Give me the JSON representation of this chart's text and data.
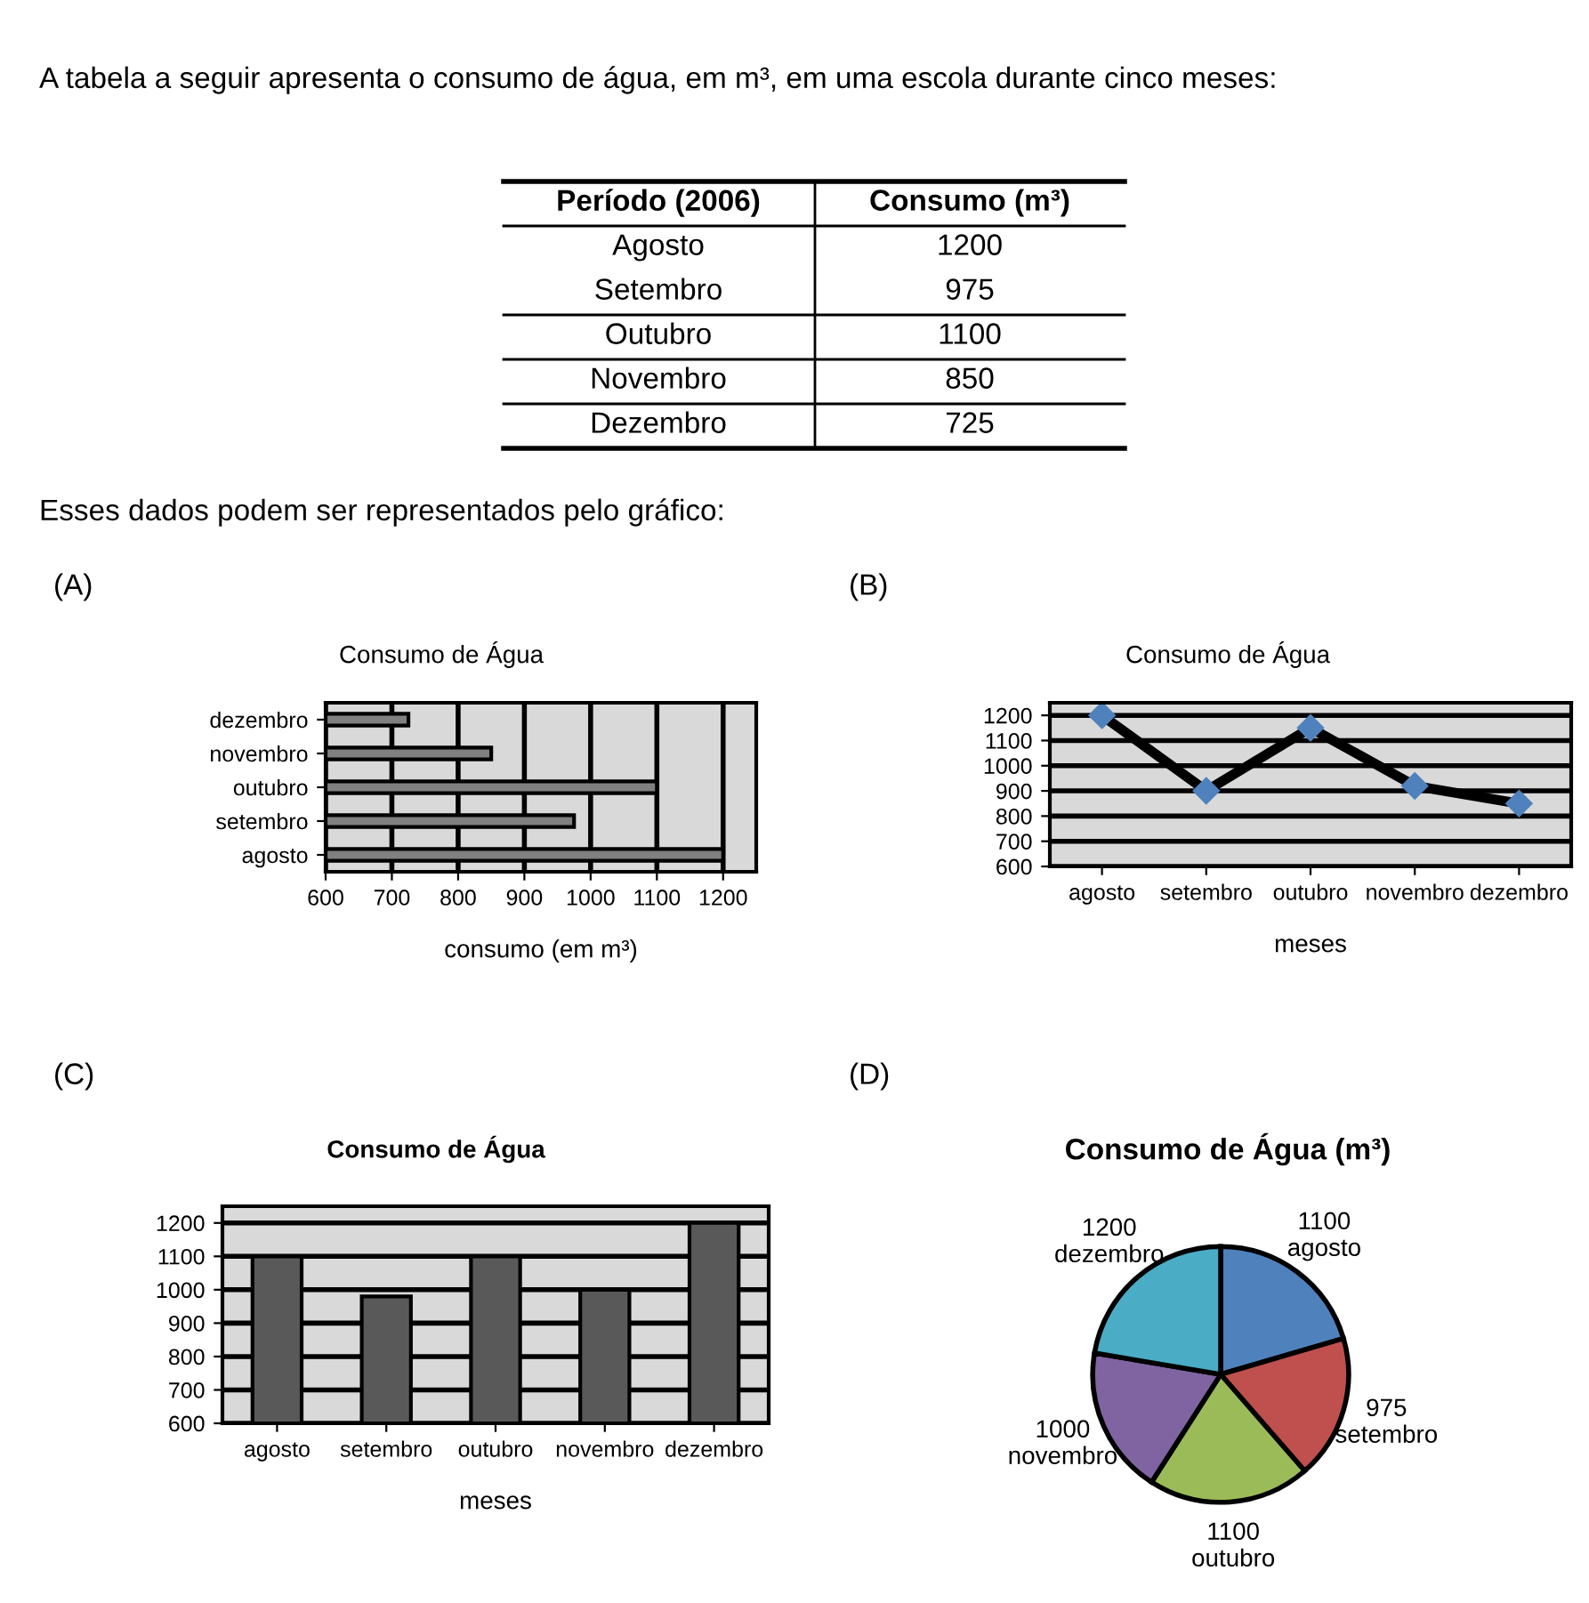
{
  "chart_data": [
    {
      "type": "other",
      "title": "A tabela a seguir apresenta o consumo de água, em m³, em uma escola durante cinco meses:",
      "annotations": [
        "Período (2006)",
        "Consumo (m³)",
        "Agosto",
        "1200",
        "Setembro",
        "975",
        "Outubro",
        "1100",
        "Novembro",
        "850",
        "Dezembro",
        "725",
        "Esses dados podem ser representados pelo gráfico:"
      ]
    },
    {
      "type": "bar",
      "orientation": "horizontal",
      "subtitle": "(A)",
      "title": "Consumo de Água",
      "xlabel": "consumo (em m³)",
      "categories": [
        "dezembro",
        "novembro",
        "outubro",
        "setembro",
        "agosto"
      ],
      "values": [
        725,
        850,
        1100,
        975,
        1200
      ],
      "color": "#808080",
      "xlim": [
        600,
        1250
      ],
      "xticks": [
        600,
        700,
        800,
        900,
        1000,
        1100,
        1200
      ],
      "grid": "x"
    },
    {
      "type": "line",
      "subtitle": "(B)",
      "title": "Consumo de Água",
      "xlabel": "meses",
      "categories": [
        "agosto",
        "setembro",
        "outubro",
        "novembro",
        "dezembro"
      ],
      "series": [
        {
          "color": "#000000",
          "values": [
            1200,
            900,
            1150,
            920,
            850
          ]
        }
      ],
      "marker": "diamond",
      "ylim": [
        600,
        1250
      ],
      "yticks": [
        600,
        700,
        800,
        900,
        1000,
        1100,
        1200
      ],
      "grid": "y"
    },
    {
      "type": "bar",
      "subtitle": "(C)",
      "title": "Consumo de Água",
      "xlabel": "meses",
      "categories": [
        "agosto",
        "setembro",
        "outubro",
        "novembro",
        "dezembro"
      ],
      "values": [
        1100,
        980,
        1100,
        1000,
        1200
      ],
      "color": "#595959",
      "ylim": [
        600,
        1250
      ],
      "yticks": [
        600,
        700,
        800,
        900,
        1000,
        1100,
        1200
      ],
      "grid": "y"
    },
    {
      "type": "pie",
      "subtitle": "(D)",
      "title": "Consumo de Água (m³)",
      "categories": [
        "agosto",
        "setembro",
        "outubro",
        "novembro",
        "dezembro"
      ],
      "values": [
        1100,
        975,
        1100,
        1000,
        1200
      ],
      "colors": [
        "#4f81bd",
        "#c0504d",
        "#9bbb59",
        "#8064a2",
        "#4bacc6"
      ],
      "data_labels": true
    }
  ]
}
